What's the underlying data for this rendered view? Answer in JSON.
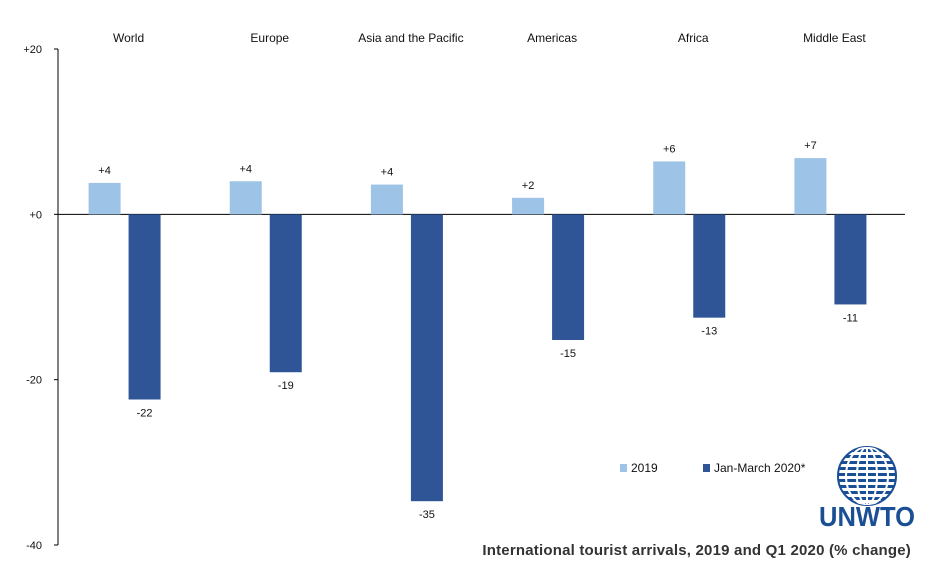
{
  "chart_data": {
    "type": "bar",
    "categories": [
      "World",
      "Europe",
      "Asia and the Pacific",
      "Americas",
      "Africa",
      "Middle East"
    ],
    "series": [
      {
        "name": "2019",
        "values": [
          3.8,
          4.0,
          3.6,
          2.0,
          6.4,
          6.8
        ],
        "labels": [
          "+4",
          "+4",
          "+4",
          "+2",
          "+6",
          "+7"
        ],
        "color": "#9dc3e6"
      },
      {
        "name": "Jan-March 2020*",
        "values": [
          -22.4,
          -19.1,
          -34.7,
          -15.2,
          -12.5,
          -10.9
        ],
        "labels": [
          "-22",
          "-19",
          "-35",
          "-15",
          "-13",
          "-11"
        ],
        "color": "#2f5597"
      }
    ],
    "ylim": [
      -40,
      20
    ],
    "yticks": [
      20,
      0,
      -20,
      -40
    ],
    "ytick_labels": [
      "+20",
      "+0",
      "-20",
      "-40"
    ],
    "xlabel": "",
    "ylabel": "",
    "legend_position": "bottom-right",
    "grid": false
  },
  "caption": "International tourist arrivals, 2019 and Q1 2020 (% change)",
  "logo": {
    "text": "UNWTO",
    "icon": "globe-icon"
  }
}
